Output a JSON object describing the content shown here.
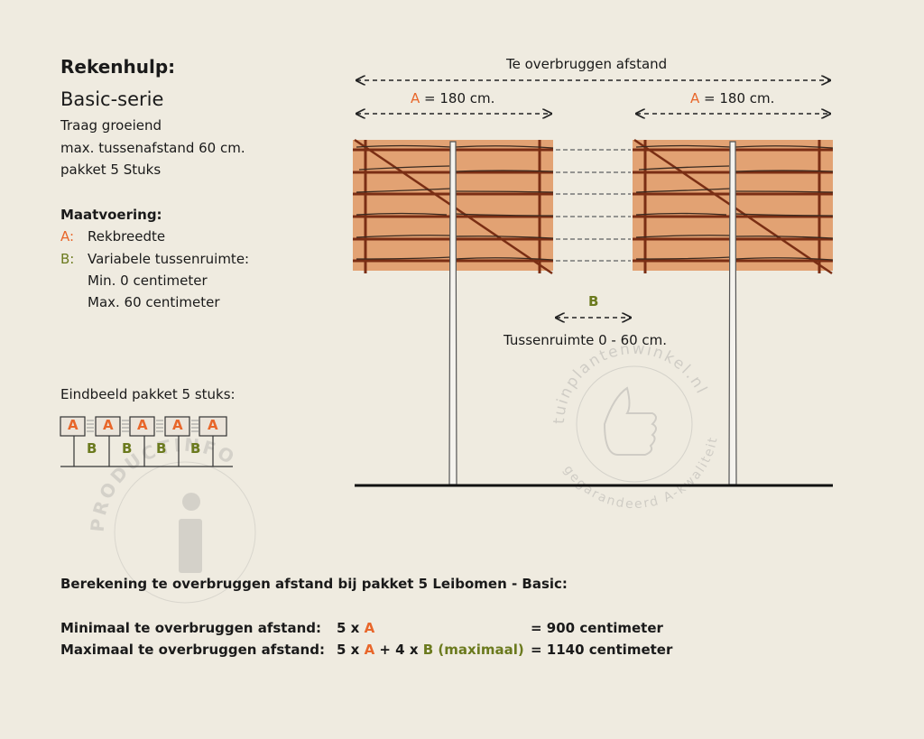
{
  "left": {
    "title": "Rekenhulp:",
    "subtitle": "Basic-serie",
    "lines": [
      "Traag groeiend",
      "max. tussenafstand 60 cm.",
      "pakket 5 Stuks"
    ],
    "dimensions_heading": "Maatvoering:",
    "a_key": "A:",
    "a_label": "Rekbreedte",
    "b_key": "B:",
    "b_label": "Variabele tussenruimte:",
    "b_min": "Min. 0 centimeter",
    "b_max": "Max. 60 centimeter",
    "end_result_heading": "Eindbeeld pakket 5 stuks:",
    "mini_a": [
      "A",
      "A",
      "A",
      "A",
      "A"
    ],
    "mini_b": [
      "B",
      "B",
      "B",
      "B"
    ]
  },
  "diagram": {
    "total_label": "Te overbruggen afstand",
    "a_letter": "A",
    "a_value": "= 180 cm.",
    "b_letter": "B",
    "gap_label": "Tussenruimte 0 - 60 cm."
  },
  "watermarks": {
    "productinfo": "PRODUCTINFO",
    "shop": "tuinplantenwinkel.nl",
    "shop_sub": "gegarandeerd A-kwaliteit"
  },
  "calculation": {
    "heading": "Berekening te overbruggen afstand bij pakket 5 Leibomen - Basic:",
    "min_label": "Minimaal te overbruggen afstand:",
    "min_f1": "5 x ",
    "min_a": "A",
    "min_result": "= 900 centimeter",
    "max_label": "Maximaal te overbruggen afstand:",
    "max_f1": "5 x ",
    "max_a": "A",
    "max_f2": " + 4 x ",
    "max_b": "B (maximaal)",
    "max_result": "= 1140 centimeter"
  },
  "colors": {
    "background": "#efebe0",
    "a_color": "#e8662a",
    "b_color": "#6b7a1e",
    "panel": "#e2a273",
    "wood": "#8b3a1a"
  }
}
